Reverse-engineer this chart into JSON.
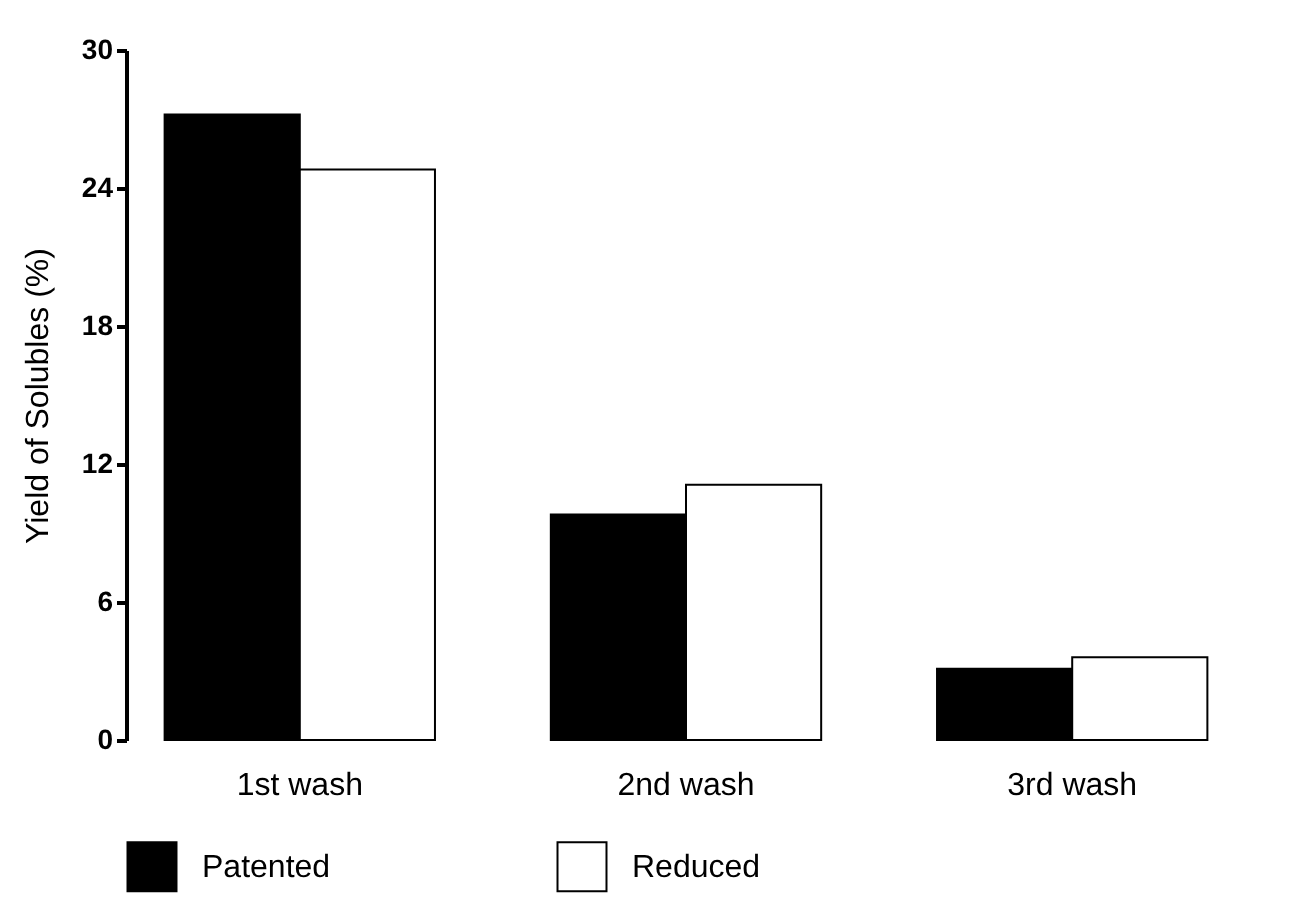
{
  "chart_data": {
    "type": "bar",
    "ylabel": "Yield of Solubles (%)",
    "categories": [
      "1st  wash",
      "2nd  wash",
      "3rd  wash"
    ],
    "series": [
      {
        "name": "Patented",
        "color": "#000000",
        "values": [
          27.2,
          9.8,
          3.1
        ]
      },
      {
        "name": "Reduced",
        "color": "#ffffff",
        "values": [
          24.8,
          11.1,
          3.6
        ]
      }
    ],
    "ylim": [
      0,
      30
    ],
    "yticks": [
      0,
      6,
      12,
      18,
      24,
      30
    ],
    "grid": false,
    "legend": "bottom"
  }
}
